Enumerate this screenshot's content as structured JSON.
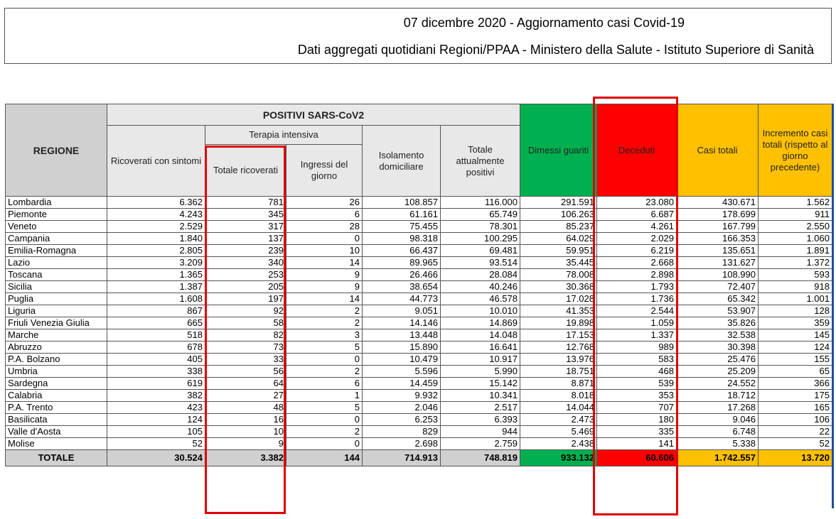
{
  "header": {
    "title": "07 dicembre 2020 - Aggiornamento casi Covid-19",
    "subtitle": "Dati aggregati quotidiani Regioni/PPAA - Ministero della Salute - Istituto Superiore di Sanità"
  },
  "table": {
    "headers": {
      "regione": "REGIONE",
      "positivi": "POSITIVI SARS-CoV2",
      "ricoverati": "Ricoverati con sintomi",
      "terapia": "Terapia intensiva",
      "totale_ricoverati": "Totale ricoverati",
      "ingressi": "Ingressi del giorno",
      "isolamento": "Isolamento domiciliare",
      "totale_positivi": "Totale attualmente positivi",
      "dimessi": "Dimessi guariti",
      "deceduti": "Deceduti",
      "casi": "Casi totali",
      "incremento": "Incremento casi totali (rispetto al giorno precedente)"
    },
    "rows": [
      [
        "Lombardia",
        "6.362",
        "781",
        "26",
        "108.857",
        "116.000",
        "291.591",
        "23.080",
        "430.671",
        "1.562"
      ],
      [
        "Piemonte",
        "4.243",
        "345",
        "6",
        "61.161",
        "65.749",
        "106.263",
        "6.687",
        "178.699",
        "911"
      ],
      [
        "Veneto",
        "2.529",
        "317",
        "28",
        "75.455",
        "78.301",
        "85.237",
        "4.261",
        "167.799",
        "2.550"
      ],
      [
        "Campania",
        "1.840",
        "137",
        "0",
        "98.318",
        "100.295",
        "64.029",
        "2.029",
        "166.353",
        "1.060"
      ],
      [
        "Emilia-Romagna",
        "2.805",
        "239",
        "10",
        "66.437",
        "69.481",
        "59.951",
        "6.219",
        "135.651",
        "1.891"
      ],
      [
        "Lazio",
        "3.209",
        "340",
        "14",
        "89.965",
        "93.514",
        "35.445",
        "2.668",
        "131.627",
        "1.372"
      ],
      [
        "Toscana",
        "1.365",
        "253",
        "9",
        "26.466",
        "28.084",
        "78.008",
        "2.898",
        "108.990",
        "593"
      ],
      [
        "Sicilia",
        "1.387",
        "205",
        "9",
        "38.654",
        "40.246",
        "30.368",
        "1.793",
        "72.407",
        "918"
      ],
      [
        "Puglia",
        "1.608",
        "197",
        "14",
        "44.773",
        "46.578",
        "17.028",
        "1.736",
        "65.342",
        "1.001"
      ],
      [
        "Liguria",
        "867",
        "92",
        "2",
        "9.051",
        "10.010",
        "41.353",
        "2.544",
        "53.907",
        "128"
      ],
      [
        "Friuli Venezia Giulia",
        "665",
        "58",
        "2",
        "14.146",
        "14.869",
        "19.898",
        "1.059",
        "35.826",
        "359"
      ],
      [
        "Marche",
        "518",
        "82",
        "3",
        "13.448",
        "14.048",
        "17.153",
        "1.337",
        "32.538",
        "145"
      ],
      [
        "Abruzzo",
        "678",
        "73",
        "5",
        "15.890",
        "16.641",
        "12.768",
        "989",
        "30.398",
        "124"
      ],
      [
        "P.A. Bolzano",
        "405",
        "33",
        "0",
        "10.479",
        "10.917",
        "13.976",
        "583",
        "25.476",
        "155"
      ],
      [
        "Umbria",
        "338",
        "56",
        "2",
        "5.596",
        "5.990",
        "18.751",
        "468",
        "25.209",
        "65"
      ],
      [
        "Sardegna",
        "619",
        "64",
        "6",
        "14.459",
        "15.142",
        "8.871",
        "539",
        "24.552",
        "366"
      ],
      [
        "Calabria",
        "382",
        "27",
        "1",
        "9.932",
        "10.341",
        "8.018",
        "353",
        "18.712",
        "175"
      ],
      [
        "P.A. Trento",
        "423",
        "48",
        "5",
        "2.046",
        "2.517",
        "14.044",
        "707",
        "17.268",
        "165"
      ],
      [
        "Basilicata",
        "124",
        "16",
        "0",
        "6.253",
        "6.393",
        "2.473",
        "180",
        "9.046",
        "106"
      ],
      [
        "Valle d'Aosta",
        "105",
        "10",
        "2",
        "829",
        "944",
        "5.469",
        "335",
        "6.748",
        "22"
      ],
      [
        "Molise",
        "52",
        "9",
        "0",
        "2.698",
        "2.759",
        "2.438",
        "141",
        "5.338",
        "52"
      ]
    ],
    "totals": [
      "TOTALE",
      "30.524",
      "3.382",
      "144",
      "714.913",
      "748.819",
      "933.132",
      "60.606",
      "1.742.557",
      "13.720"
    ]
  },
  "colors": {
    "guariti": "#00b050",
    "deceduti": "#ff0000",
    "casi": "#ffc000",
    "highlight": "#e00000"
  }
}
